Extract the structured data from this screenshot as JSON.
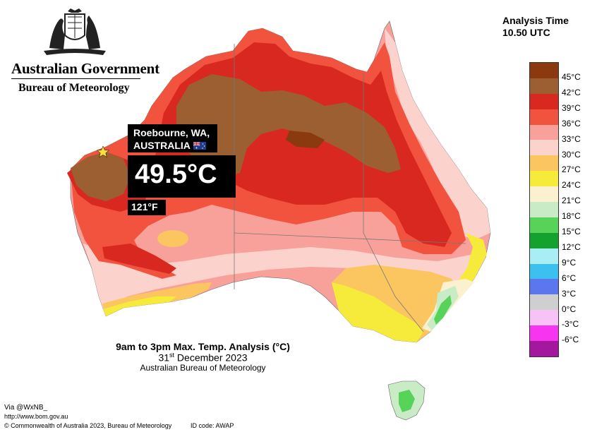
{
  "header": {
    "government": "Australian Government",
    "bureau": "Bureau of Meteorology",
    "analysis_time_label": "Analysis Time",
    "analysis_time_value": "10.50 UTC"
  },
  "callout": {
    "place": "Roebourne, WA,",
    "country": "AUSTRALIA",
    "temp_c": "49.5°C",
    "temp_f": "121°F"
  },
  "title": {
    "main": "9am to 3pm Max. Temp. Analysis (°C)",
    "date_day": "31",
    "date_suffix": "st",
    "date_rest": " December 2023",
    "org": "Australian Bureau of Meteorology"
  },
  "footer": {
    "via": "Via @WxNB_",
    "url": "http://www.bom.gov.au",
    "copyright": "© Commonwealth of Australia 2023, Bureau of Meteorology",
    "id_code": "ID code: AWAP"
  },
  "legend": [
    {
      "label": "45°C",
      "color": "#8b3a0f"
    },
    {
      "label": "42°C",
      "color": "#9c5f32"
    },
    {
      "label": "39°C",
      "color": "#d8281f"
    },
    {
      "label": "36°C",
      "color": "#f2533e"
    },
    {
      "label": "33°C",
      "color": "#f8a19a"
    },
    {
      "label": "30°C",
      "color": "#fcd2cc"
    },
    {
      "label": "27°C",
      "color": "#fbc560"
    },
    {
      "label": "24°C",
      "color": "#f6ea3a"
    },
    {
      "label": "21°C",
      "color": "#fbf0cf"
    },
    {
      "label": "18°C",
      "color": "#c9ecc6"
    },
    {
      "label": "15°C",
      "color": "#58d35a"
    },
    {
      "label": "12°C",
      "color": "#14a12e"
    },
    {
      "label": "9°C",
      "color": "#a8eef4"
    },
    {
      "label": "6°C",
      "color": "#3cc0f0"
    },
    {
      "label": "3°C",
      "color": "#5b76ee"
    },
    {
      "label": "0°C",
      "color": "#cfcfcf"
    },
    {
      "label": "-3°C",
      "color": "#f7c2f5"
    },
    {
      "label": "-6°C",
      "color": "#f734f0"
    },
    {
      "label": "",
      "color": "#a3189c"
    }
  ],
  "legend_bottom_extra": "-6°C"
}
